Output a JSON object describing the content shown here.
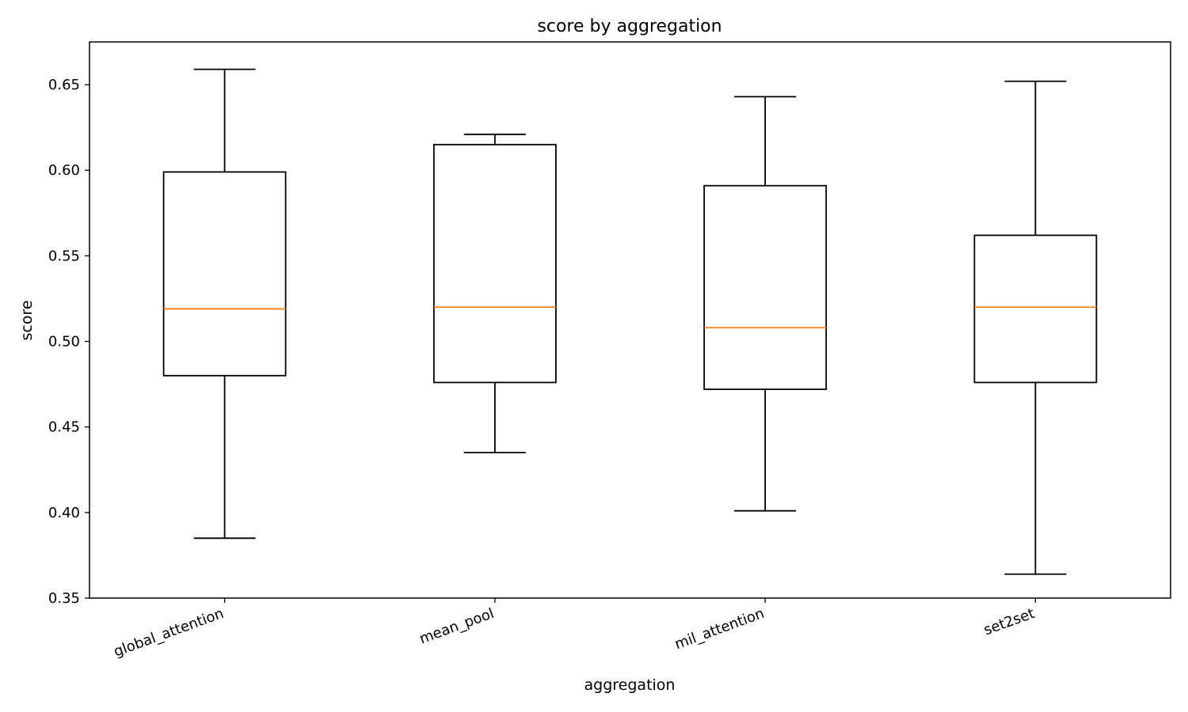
{
  "chart_data": {
    "type": "box",
    "title": "score by aggregation",
    "xlabel": "aggregation",
    "ylabel": "score",
    "ylim": [
      0.35,
      0.675
    ],
    "yticks": [
      0.35,
      0.4,
      0.45,
      0.5,
      0.55,
      0.6,
      0.65
    ],
    "ytick_labels": [
      "0.35",
      "0.40",
      "0.45",
      "0.50",
      "0.55",
      "0.60",
      "0.65"
    ],
    "grid": false,
    "categories": [
      "global_attention",
      "mean_pool",
      "mil_attention",
      "set2set"
    ],
    "boxes": [
      {
        "category": "global_attention",
        "whisker_low": 0.385,
        "q1": 0.48,
        "median": 0.519,
        "q3": 0.599,
        "whisker_high": 0.659
      },
      {
        "category": "mean_pool",
        "whisker_low": 0.435,
        "q1": 0.476,
        "median": 0.52,
        "q3": 0.615,
        "whisker_high": 0.621
      },
      {
        "category": "mil_attention",
        "whisker_low": 0.401,
        "q1": 0.472,
        "median": 0.508,
        "q3": 0.591,
        "whisker_high": 0.643
      },
      {
        "category": "set2set",
        "whisker_low": 0.364,
        "q1": 0.476,
        "median": 0.52,
        "q3": 0.562,
        "whisker_high": 0.652
      }
    ],
    "colors": {
      "box": "#000000",
      "median": "#ff7f0e"
    }
  }
}
